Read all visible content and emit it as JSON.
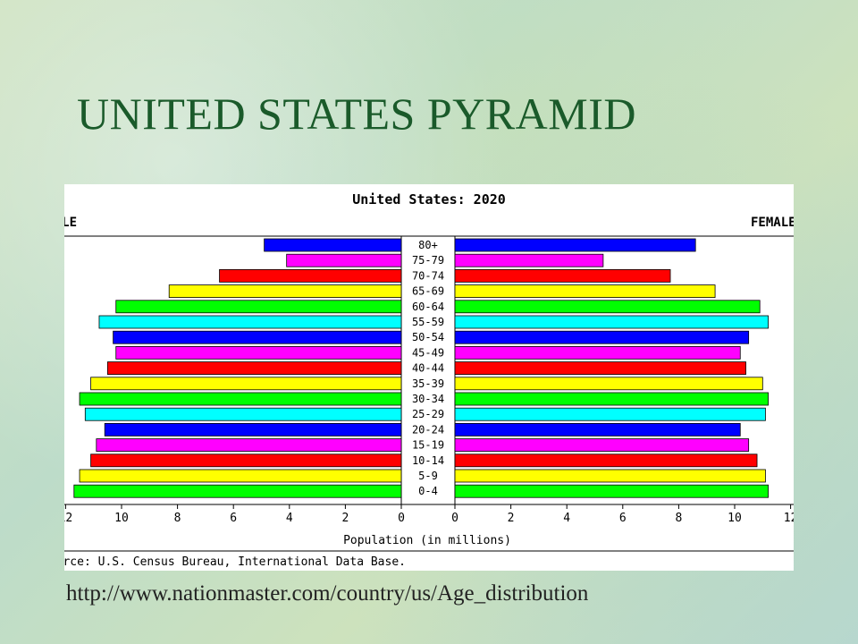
{
  "slide": {
    "title": "UNITED STATES PYRAMID",
    "link": "http://www.nationmaster.com/country/us/Age_distribution"
  },
  "chart_data": {
    "type": "bar",
    "title": "United States: 2020",
    "left_label": "MALE",
    "right_label": "FEMALE",
    "xlabel": "Population (in millions)",
    "source": "Source: U.S. Census Bureau, International Data Base.",
    "xlim": [
      0,
      12
    ],
    "ticks": [
      0,
      2,
      4,
      6,
      8,
      10,
      12
    ],
    "categories": [
      "80+",
      "75-79",
      "70-74",
      "65-69",
      "60-64",
      "55-59",
      "50-54",
      "45-49",
      "40-44",
      "35-39",
      "30-34",
      "25-29",
      "20-24",
      "15-19",
      "10-14",
      "5-9",
      "0-4"
    ],
    "colors": [
      "#0000ff",
      "#ff00ff",
      "#ff0000",
      "#ffff00",
      "#00ff00",
      "#00ffff",
      "#0000ff",
      "#ff00ff",
      "#ff0000",
      "#ffff00",
      "#00ff00",
      "#00ffff",
      "#0000ff",
      "#ff00ff",
      "#ff0000",
      "#ffff00",
      "#00ff00"
    ],
    "series": [
      {
        "name": "MALE",
        "values": [
          4.9,
          4.1,
          6.5,
          8.3,
          10.2,
          10.8,
          10.3,
          10.2,
          10.5,
          11.1,
          11.5,
          11.3,
          10.6,
          10.9,
          11.1,
          11.5,
          11.7
        ]
      },
      {
        "name": "FEMALE",
        "values": [
          8.6,
          5.3,
          7.7,
          9.3,
          10.9,
          11.2,
          10.5,
          10.2,
          10.4,
          11.0,
          11.2,
          11.1,
          10.2,
          10.5,
          10.8,
          11.1,
          11.2
        ]
      }
    ]
  }
}
